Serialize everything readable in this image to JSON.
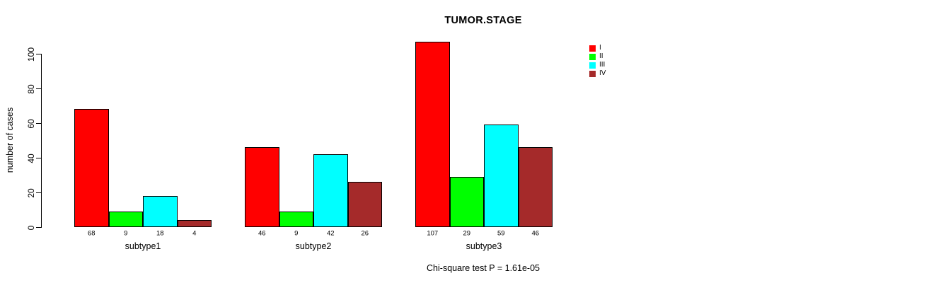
{
  "chart_data": {
    "type": "bar",
    "grouped": true,
    "title": "TUMOR.STAGE",
    "xlabel": "",
    "ylabel": "number of cases",
    "categories": [
      "subtype1",
      "subtype2",
      "subtype3"
    ],
    "series": [
      {
        "name": "I",
        "color": "#ff0000",
        "values": [
          68,
          46,
          107
        ]
      },
      {
        "name": "II",
        "color": "#00ff00",
        "values": [
          9,
          9,
          29
        ]
      },
      {
        "name": "III",
        "color": "#00ffff",
        "values": [
          18,
          42,
          59
        ]
      },
      {
        "name": "IV",
        "color": "#a52a2a",
        "values": [
          4,
          26,
          46
        ]
      }
    ],
    "bar_value_labels": [
      [
        68,
        9,
        18,
        4
      ],
      [
        46,
        9,
        42,
        26
      ],
      [
        107,
        29,
        59,
        46
      ]
    ],
    "yticks": [
      0,
      20,
      40,
      60,
      80,
      100
    ],
    "ylim": [
      0,
      100
    ],
    "grid": false,
    "legend_position": "top-right",
    "legend_labels": [
      "I",
      "II",
      "III",
      "IV"
    ],
    "annotation": "Chi-square test P = 1.61e-05"
  }
}
